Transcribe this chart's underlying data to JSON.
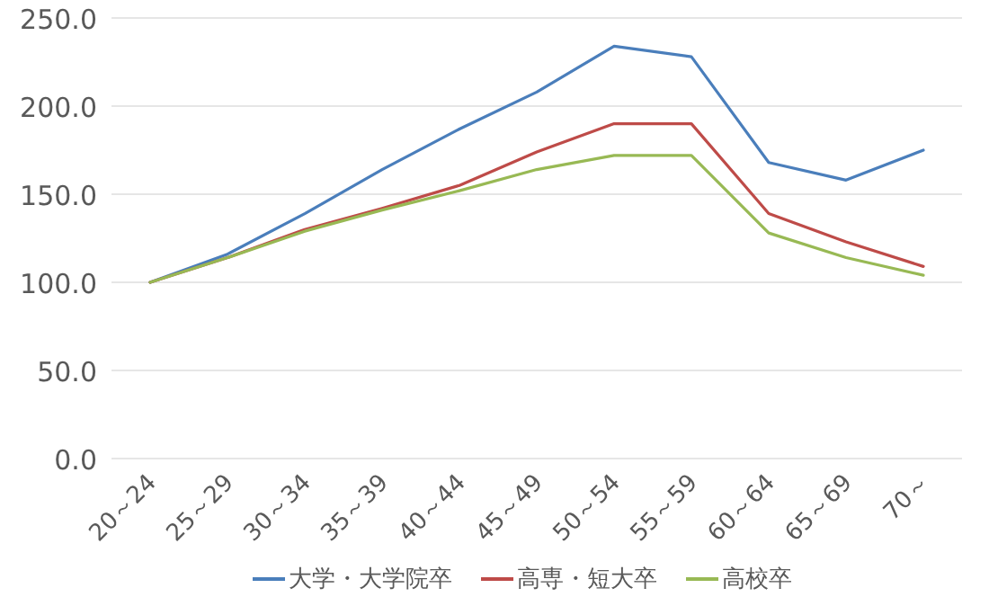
{
  "chart_data": {
    "type": "line",
    "categories": [
      "20～24",
      "25～29",
      "30～34",
      "35～39",
      "40～44",
      "45～49",
      "50～54",
      "55～59",
      "60～64",
      "65～69",
      "70～"
    ],
    "series": [
      {
        "name": "大学・大学院卒",
        "color": "#4a7ebb",
        "values": [
          100,
          116,
          139,
          164,
          187,
          208,
          234,
          228,
          168,
          158,
          175
        ]
      },
      {
        "name": "高専・短大卒",
        "color": "#be4b48",
        "values": [
          100,
          114,
          130,
          142,
          155,
          174,
          190,
          190,
          139,
          123,
          109
        ]
      },
      {
        "name": "高校卒",
        "color": "#98b954",
        "values": [
          100,
          114,
          129,
          141,
          152,
          164,
          172,
          172,
          128,
          114,
          104
        ]
      }
    ],
    "ylim": [
      0,
      250
    ],
    "yticks": [
      {
        "value": 0,
        "label": "0.0"
      },
      {
        "value": 50,
        "label": "50.0"
      },
      {
        "value": 100,
        "label": "100.0"
      },
      {
        "value": 150,
        "label": "150.0"
      },
      {
        "value": 200,
        "label": "200.0"
      },
      {
        "value": 250,
        "label": "250.0"
      }
    ],
    "grid": "y",
    "legend": "bottom",
    "line_style": "solid"
  }
}
